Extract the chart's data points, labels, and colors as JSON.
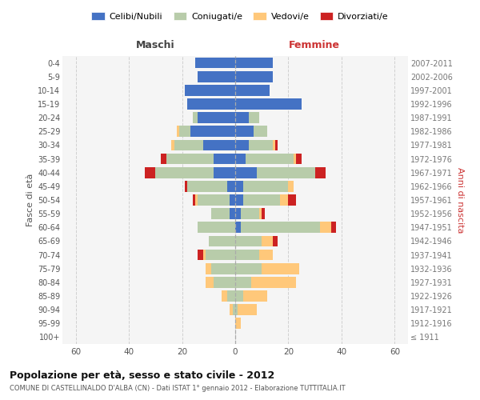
{
  "age_groups": [
    "100+",
    "95-99",
    "90-94",
    "85-89",
    "80-84",
    "75-79",
    "70-74",
    "65-69",
    "60-64",
    "55-59",
    "50-54",
    "45-49",
    "40-44",
    "35-39",
    "30-34",
    "25-29",
    "20-24",
    "15-19",
    "10-14",
    "5-9",
    "0-4"
  ],
  "birth_years": [
    "≤ 1911",
    "1912-1916",
    "1917-1921",
    "1922-1926",
    "1927-1931",
    "1932-1936",
    "1937-1941",
    "1942-1946",
    "1947-1951",
    "1952-1956",
    "1957-1961",
    "1962-1966",
    "1967-1971",
    "1972-1976",
    "1977-1981",
    "1982-1986",
    "1987-1991",
    "1992-1996",
    "1997-2001",
    "2002-2006",
    "2007-2011"
  ],
  "maschi": {
    "celibi": [
      0,
      0,
      0,
      0,
      0,
      0,
      0,
      0,
      0,
      2,
      2,
      3,
      8,
      8,
      12,
      17,
      14,
      18,
      19,
      14,
      15
    ],
    "coniugati": [
      0,
      0,
      1,
      3,
      8,
      9,
      11,
      10,
      14,
      7,
      12,
      15,
      22,
      18,
      11,
      4,
      2,
      0,
      0,
      0,
      0
    ],
    "vedovi": [
      0,
      0,
      1,
      2,
      3,
      2,
      1,
      0,
      0,
      0,
      1,
      0,
      0,
      0,
      1,
      1,
      0,
      0,
      0,
      0,
      0
    ],
    "divorziati": [
      0,
      0,
      0,
      0,
      0,
      0,
      2,
      0,
      0,
      0,
      1,
      1,
      4,
      2,
      0,
      0,
      0,
      0,
      0,
      0,
      0
    ]
  },
  "femmine": {
    "nubili": [
      0,
      0,
      0,
      0,
      0,
      0,
      0,
      0,
      2,
      2,
      3,
      3,
      8,
      4,
      5,
      7,
      5,
      25,
      13,
      14,
      14
    ],
    "coniugate": [
      0,
      0,
      1,
      3,
      6,
      10,
      9,
      10,
      30,
      7,
      14,
      17,
      22,
      18,
      9,
      5,
      4,
      0,
      0,
      0,
      0
    ],
    "vedove": [
      0,
      2,
      7,
      9,
      17,
      14,
      5,
      4,
      4,
      1,
      3,
      2,
      0,
      1,
      1,
      0,
      0,
      0,
      0,
      0,
      0
    ],
    "divorziate": [
      0,
      0,
      0,
      0,
      0,
      0,
      0,
      2,
      2,
      1,
      3,
      0,
      4,
      2,
      1,
      0,
      0,
      0,
      0,
      0,
      0
    ]
  },
  "colors": {
    "celibi_nubili": "#4472c4",
    "coniugati_e": "#b8ccaa",
    "vedovi_e": "#ffc87a",
    "divorziati_e": "#cc2222"
  },
  "xlim": 65,
  "title": "Popolazione per età, sesso e stato civile - 2012",
  "subtitle": "COMUNE DI CASTELLINALDO D'ALBA (CN) - Dati ISTAT 1° gennaio 2012 - Elaborazione TUTTITALIA.IT",
  "xlabel_left": "Maschi",
  "xlabel_right": "Femmine",
  "ylabel_left": "Fasce di età",
  "ylabel_right": "Anni di nascita",
  "legend_labels": [
    "Celibi/Nubili",
    "Coniugati/e",
    "Vedovi/e",
    "Divorziati/e"
  ],
  "bg_color": "#ffffff",
  "grid_color": "#cccccc"
}
